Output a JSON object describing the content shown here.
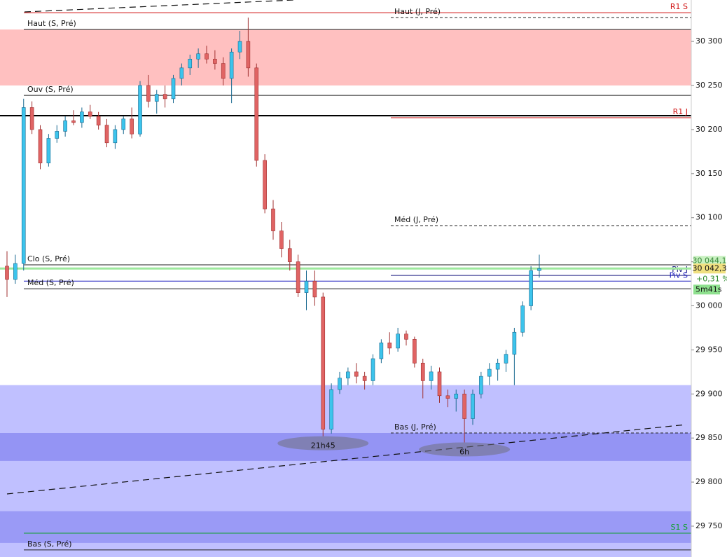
{
  "chart_data": {
    "type": "candlestick",
    "ylim": [
      29715,
      30347
    ],
    "yticks": [
      {
        "value": 29750,
        "label": "29 750"
      },
      {
        "value": 29800,
        "label": "29 800"
      },
      {
        "value": 29850,
        "label": "29 850"
      },
      {
        "value": 29900,
        "label": "29 900"
      },
      {
        "value": 29950,
        "label": "29 950"
      },
      {
        "value": 30000,
        "label": "30 000"
      },
      {
        "value": 30050,
        "label": "30 050"
      },
      {
        "value": 30100,
        "label": "30 100"
      },
      {
        "value": 30150,
        "label": "30 150"
      },
      {
        "value": 30200,
        "label": "30 200"
      },
      {
        "value": 30250,
        "label": "30 250"
      },
      {
        "value": 30300,
        "label": "30 300"
      }
    ],
    "up_color": "#3cc4ec",
    "down_color": "#e06464",
    "zones": [
      {
        "from": 30250,
        "to": 30313.5,
        "color": "#ffc0c0"
      },
      {
        "from": 29715,
        "to": 29910,
        "color": "#c0c0ff"
      },
      {
        "from": 29824,
        "to": 29855.7,
        "color": "#9494f4"
      },
      {
        "from": 29731,
        "to": 29767,
        "color": "#9a9af6"
      }
    ],
    "levels": [
      {
        "name": "R1 S",
        "value": 30332.6,
        "color": "#d01010",
        "style": "solid",
        "extent": "full",
        "label_pos": "right"
      },
      {
        "name": "Haut (J, Pré)",
        "value": 30327,
        "color": "#222222",
        "style": "dashed",
        "extent": "right",
        "label_pos": "mid"
      },
      {
        "name": "Haut (S, Pré)",
        "value": 30313.5,
        "color": "#222222",
        "style": "solid",
        "extent": "full",
        "label_pos": "left"
      },
      {
        "name": "Ouv (S, Pré)",
        "value": 30238.8,
        "color": "#222222",
        "style": "solid",
        "extent": "full",
        "label_pos": "left"
      },
      {
        "value": 30215.8,
        "color": "#000000",
        "style": "thick",
        "extent": "all"
      },
      {
        "name": "R1 J",
        "value": 30213.4,
        "color": "#d01010",
        "style": "solid",
        "extent": "right",
        "label_pos": "right"
      },
      {
        "name": "Méd (J, Pré)",
        "value": 30091,
        "color": "#222222",
        "style": "dashed",
        "extent": "right",
        "label_pos": "mid"
      },
      {
        "name": "Clo (S, Pré)",
        "value": 30046.5,
        "color": "#222222",
        "style": "solid",
        "extent": "full",
        "label_pos": "left"
      },
      {
        "name": "Piv J",
        "value": 30034.5,
        "color": "#1a1a80",
        "style": "solid",
        "extent": "right",
        "label_pos": "right"
      },
      {
        "name": "Piv S",
        "value": 30028,
        "color": "#2020c0",
        "style": "solid",
        "extent": "full",
        "label_pos": "right"
      },
      {
        "name": "Méd (S, Pré)",
        "value": 30019.4,
        "color": "#222222",
        "style": "solid",
        "extent": "full",
        "label_pos": "left"
      },
      {
        "name": "Bas (J, Pré)",
        "value": 29855.7,
        "color": "#222222",
        "style": "dashed",
        "extent": "right",
        "label_pos": "mid"
      },
      {
        "name": "S1 S",
        "value": 29742,
        "color": "#10a030",
        "style": "solid",
        "extent": "full",
        "label_pos": "right"
      },
      {
        "name": "Bas (S, Pré)",
        "value": 29723,
        "color": "#222222",
        "style": "solid",
        "extent": "full",
        "label_pos": "left"
      }
    ],
    "annotations": [
      {
        "label": "21h45",
        "value": 29852
      },
      {
        "label": "6h",
        "value": 29845
      }
    ],
    "prev_price": {
      "value": 30044.1,
      "label": "30 044,1"
    },
    "last_price": {
      "value": 30042.3,
      "label": "30 042,3"
    },
    "change_label": "+0,31 %",
    "timer": "5m41s",
    "ohlc": [
      [
        30045,
        30062,
        30010,
        30030
      ],
      [
        30030,
        30058,
        30025,
        30048
      ],
      [
        30048,
        30235,
        30040,
        30225
      ],
      [
        30225,
        30232,
        30195,
        30200
      ],
      [
        30200,
        30205,
        30155,
        30162
      ],
      [
        30162,
        30195,
        30158,
        30190
      ],
      [
        30190,
        30205,
        30185,
        30198
      ],
      [
        30198,
        30215,
        30192,
        30210
      ],
      [
        30210,
        30222,
        30205,
        30208
      ],
      [
        30208,
        30225,
        30202,
        30220
      ],
      [
        30220,
        30228,
        30212,
        30215
      ],
      [
        30215,
        30220,
        30200,
        30205
      ],
      [
        30205,
        30212,
        30180,
        30185
      ],
      [
        30185,
        30205,
        30178,
        30200
      ],
      [
        30200,
        30215,
        30195,
        30212
      ],
      [
        30212,
        30225,
        30190,
        30195
      ],
      [
        30195,
        30255,
        30192,
        30250
      ],
      [
        30250,
        30262,
        30225,
        30232
      ],
      [
        30232,
        30245,
        30218,
        30240
      ],
      [
        30240,
        30250,
        30225,
        30235
      ],
      [
        30235,
        30262,
        30230,
        30258
      ],
      [
        30258,
        30275,
        30250,
        30270
      ],
      [
        30270,
        30285,
        30262,
        30280
      ],
      [
        30280,
        30292,
        30270,
        30286
      ],
      [
        30286,
        30295,
        30275,
        30280
      ],
      [
        30280,
        30290,
        30268,
        30275
      ],
      [
        30275,
        30282,
        30250,
        30258
      ],
      [
        30258,
        30292,
        30230,
        30288
      ],
      [
        30288,
        30312,
        30280,
        30300
      ],
      [
        30300,
        30327,
        30260,
        30270
      ],
      [
        30270,
        30275,
        30158,
        30165
      ],
      [
        30165,
        30172,
        30105,
        30110
      ],
      [
        30110,
        30120,
        30075,
        30085
      ],
      [
        30085,
        30095,
        30055,
        30065
      ],
      [
        30065,
        30075,
        30040,
        30050
      ],
      [
        30050,
        30058,
        30010,
        30015
      ],
      [
        30015,
        30040,
        29995,
        30028
      ],
      [
        30028,
        30040,
        30000,
        30010
      ],
      [
        30010,
        30015,
        29852,
        29860
      ],
      [
        29860,
        29912,
        29855,
        29905
      ],
      [
        29905,
        29925,
        29900,
        29918
      ],
      [
        29918,
        29930,
        29910,
        29925
      ],
      [
        29925,
        29935,
        29912,
        29920
      ],
      [
        29920,
        29925,
        29905,
        29915
      ],
      [
        29915,
        29945,
        29910,
        29940
      ],
      [
        29940,
        29962,
        29935,
        29958
      ],
      [
        29958,
        29970,
        29945,
        29952
      ],
      [
        29952,
        29975,
        29948,
        29968
      ],
      [
        29968,
        29972,
        29955,
        29962
      ],
      [
        29962,
        29965,
        29930,
        29935
      ],
      [
        29935,
        29940,
        29895,
        29915
      ],
      [
        29915,
        29932,
        29905,
        29925
      ],
      [
        29925,
        29930,
        29890,
        29898
      ],
      [
        29898,
        29905,
        29885,
        29895
      ],
      [
        29895,
        29905,
        29880,
        29900
      ],
      [
        29900,
        29905,
        29845,
        29872
      ],
      [
        29872,
        29905,
        29865,
        29900
      ],
      [
        29900,
        29925,
        29895,
        29920
      ],
      [
        29920,
        29935,
        29910,
        29928
      ],
      [
        29928,
        29940,
        29915,
        29935
      ],
      [
        29935,
        29950,
        29925,
        29945
      ],
      [
        29945,
        29975,
        29910,
        29970
      ],
      [
        29970,
        30005,
        29965,
        30000
      ],
      [
        30000,
        30045,
        29995,
        30040
      ],
      [
        30040,
        30058,
        30032,
        30042.3
      ]
    ]
  }
}
